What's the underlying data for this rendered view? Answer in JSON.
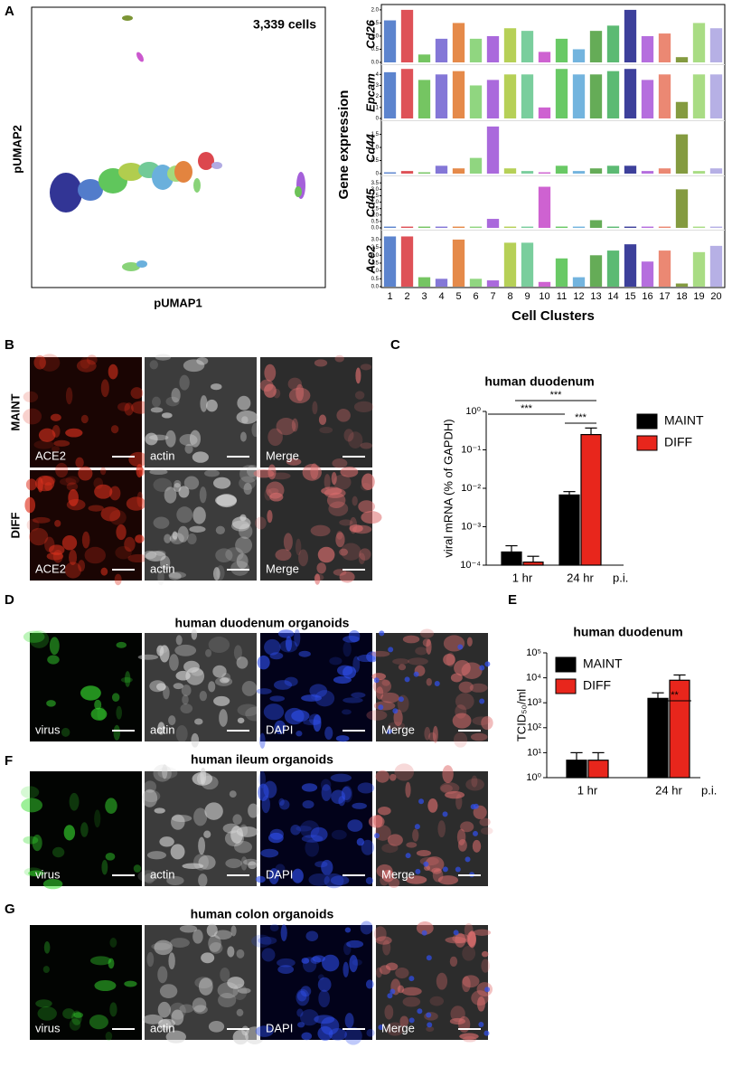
{
  "panel_labels": [
    "A",
    "B",
    "C",
    "D",
    "E",
    "F",
    "G"
  ],
  "umap": {
    "annotation": "3,339 cells",
    "x_label": "pUMAP1",
    "y_label": "pUMAP2"
  },
  "panel_b": {
    "rows": [
      "MAINT",
      "DIFF"
    ],
    "labels": [
      [
        "ACE2",
        "actin",
        "Merge"
      ],
      [
        "ACE2",
        "actin",
        "Merge"
      ]
    ]
  },
  "panel_d": {
    "title": "human duodenum organoids",
    "labels": [
      "virus",
      "actin",
      "DAPI",
      "Merge"
    ]
  },
  "panel_f": {
    "title": "human ileum organoids",
    "labels": [
      "virus",
      "actin",
      "DAPI",
      "Merge"
    ]
  },
  "panel_g": {
    "title": "human colon organoids",
    "labels": [
      "virus",
      "actin",
      "DAPI",
      "Merge"
    ]
  },
  "chart_data": [
    {
      "type": "strip",
      "y_label": "Gene expression",
      "x_label": "Cell Clusters",
      "categories": [
        "1",
        "2",
        "3",
        "4",
        "5",
        "6",
        "7",
        "8",
        "9",
        "10",
        "11",
        "12",
        "13",
        "14",
        "15",
        "16",
        "17",
        "18",
        "19",
        "20"
      ],
      "colors": [
        "#3f6ec6",
        "#d8333a",
        "#5dbb46",
        "#6f5fd0",
        "#e0762a",
        "#7ccf6a",
        "#9b4fd6",
        "#a9c83a",
        "#63c58c",
        "#c646c9",
        "#4fc04a",
        "#5aa7d8",
        "#4a9e3a",
        "#3fae5a",
        "#1b1f8a",
        "#a855d8",
        "#e8735a",
        "#6e8a1f",
        "#9ad66e",
        "#a9a2e0"
      ],
      "series": [
        {
          "name": "Cd26",
          "values": [
            1.6,
            2.0,
            0.3,
            0.9,
            1.5,
            0.9,
            1.0,
            1.3,
            1.2,
            0.4,
            0.9,
            0.5,
            1.2,
            1.4,
            2.0,
            1.0,
            1.1,
            0.2,
            1.5,
            1.3
          ],
          "ylim": [
            0,
            2.1
          ],
          "yticks": [
            {
              "value": 0,
              "label": "0.0"
            },
            0.5,
            {
              "value": 1,
              "label": "1.0"
            },
            1.5,
            {
              "value": 2,
              "label": "2.0"
            }
          ]
        },
        {
          "name": "Epcam",
          "values": [
            4.2,
            4.5,
            3.5,
            4.0,
            4.3,
            3.0,
            3.5,
            4.0,
            4.0,
            1.0,
            4.5,
            4.0,
            4.0,
            4.3,
            4.5,
            3.5,
            4.0,
            1.5,
            4.0,
            4.0
          ],
          "ylim": [
            0,
            4.6
          ],
          "yticks": [
            0,
            1,
            2,
            3,
            4
          ]
        },
        {
          "name": "Cd44",
          "values": [
            0.05,
            0.1,
            0.05,
            0.3,
            0.2,
            0.6,
            1.8,
            0.2,
            0.1,
            0.05,
            0.3,
            0.1,
            0.2,
            0.3,
            0.3,
            0.1,
            0.2,
            1.5,
            0.1,
            0.2
          ],
          "ylim": [
            0,
            1.9
          ],
          "yticks": [
            0,
            0.5,
            {
              "value": 1,
              "label": "1.0"
            },
            1.5
          ]
        },
        {
          "name": "Cd45",
          "values": [
            0.1,
            0.1,
            0.1,
            0.1,
            0.1,
            0.1,
            0.7,
            0.1,
            0.1,
            3.2,
            0.1,
            0.1,
            0.6,
            0.1,
            0.1,
            0.1,
            0.1,
            3.0,
            0.1,
            0.1
          ],
          "ylim": [
            0,
            3.8
          ],
          "yticks": [
            {
              "value": 0,
              "label": "0.0"
            },
            0.5,
            {
              "value": 1,
              "label": "1.0"
            },
            1.5,
            {
              "value": 2,
              "label": "2.0"
            },
            2.5,
            {
              "value": 3,
              "label": "3.0"
            },
            3.5
          ]
        },
        {
          "name": "Ace2",
          "values": [
            3.2,
            3.2,
            0.6,
            0.5,
            3.0,
            0.5,
            0.4,
            2.8,
            2.8,
            0.3,
            1.8,
            0.6,
            2.0,
            2.3,
            2.7,
            1.6,
            2.3,
            0.2,
            2.2,
            2.6
          ],
          "ylim": [
            0,
            3.4
          ],
          "yticks": [
            {
              "value": 0,
              "label": "0.0"
            },
            0.5,
            {
              "value": 1,
              "label": "1.0"
            },
            1.5,
            {
              "value": 2,
              "label": "2.0"
            },
            2.5,
            {
              "value": 3,
              "label": "3.0"
            }
          ]
        }
      ]
    },
    {
      "type": "bar",
      "title": "human duodenum",
      "y_label": "viral mRNA (% of GAPDH)",
      "log_scale": true,
      "categories": [
        "1 hr",
        "24 hr"
      ],
      "x_note": "p.i.",
      "series": [
        {
          "name": "MAINT",
          "color": "#000000",
          "values": [
            0.00022,
            0.0067
          ],
          "errors": [
            0.0001,
            0.0015
          ]
        },
        {
          "name": "DIFF",
          "color": "#e8261c",
          "values": [
            0.00012,
            0.25
          ],
          "errors": [
            5e-05,
            0.12
          ]
        }
      ],
      "ylim": [
        0.0001,
        1
      ],
      "yticks": [
        {
          "value": 0.0001,
          "label": "10⁻⁴"
        },
        {
          "value": 0.001,
          "label": "10⁻³"
        },
        {
          "value": 0.01,
          "label": "10⁻²"
        },
        {
          "value": 0.1,
          "label": "10⁻¹"
        },
        {
          "value": 1,
          "label": "10⁰"
        }
      ],
      "annotations": [
        "***",
        "***",
        "***"
      ]
    },
    {
      "type": "bar",
      "title": "human duodenum",
      "y_label": "TCID₅₀/ml",
      "log_scale": true,
      "categories": [
        "1 hr",
        "24 hr"
      ],
      "x_note": "p.i.",
      "series": [
        {
          "name": "MAINT",
          "color": "#000000",
          "values": [
            5,
            1500
          ],
          "errors": [
            5,
            1000
          ]
        },
        {
          "name": "DIFF",
          "color": "#e8261c",
          "values": [
            5,
            8000
          ],
          "errors": [
            5,
            5000
          ]
        }
      ],
      "ylim": [
        1,
        100000
      ],
      "yticks": [
        {
          "value": 1,
          "label": "10⁰"
        },
        {
          "value": 10,
          "label": "10¹"
        },
        {
          "value": 100,
          "label": "10²"
        },
        {
          "value": 1000,
          "label": "10³"
        },
        {
          "value": 10000,
          "label": "10⁴"
        },
        {
          "value": 100000,
          "label": "10⁵"
        }
      ],
      "annotations": [
        "**"
      ]
    }
  ]
}
